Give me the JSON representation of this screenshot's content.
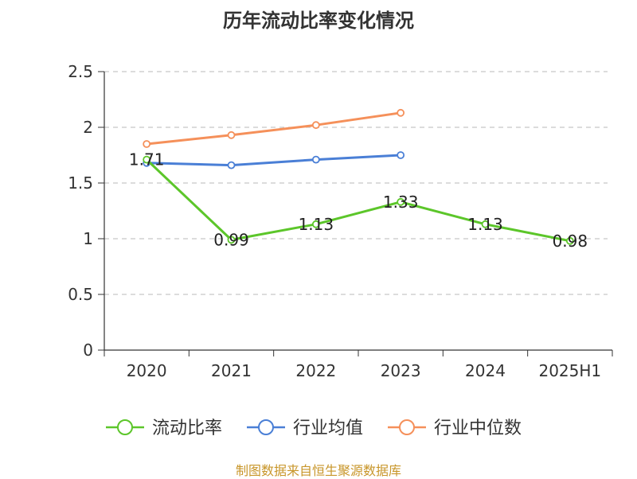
{
  "chart_data": {
    "type": "line",
    "title": "历年流动比率变化情况",
    "categories": [
      "2020",
      "2021",
      "2022",
      "2023",
      "2024",
      "2025H1"
    ],
    "ylim": [
      0,
      2.5
    ],
    "yticks": [
      "0",
      "0.5",
      "1",
      "1.5",
      "2",
      "2.5"
    ],
    "grid": true,
    "legend_position": "bottom",
    "series": [
      {
        "name": "流动比率",
        "color": "#5cc62a",
        "values": [
          1.71,
          0.99,
          1.13,
          1.33,
          1.13,
          0.98
        ],
        "labels": [
          "1.71",
          "0.99",
          "1.13",
          "1.33",
          "1.13",
          "0.98"
        ],
        "show_labels": true
      },
      {
        "name": "行业均值",
        "color": "#4a7fd6",
        "values": [
          1.68,
          1.66,
          1.71,
          1.75,
          null,
          null
        ],
        "show_labels": false
      },
      {
        "name": "行业中位数",
        "color": "#f5905a",
        "values": [
          1.85,
          1.93,
          2.02,
          2.13,
          null,
          null
        ],
        "show_labels": false
      }
    ]
  },
  "source_text": "制图数据来自恒生聚源数据库"
}
